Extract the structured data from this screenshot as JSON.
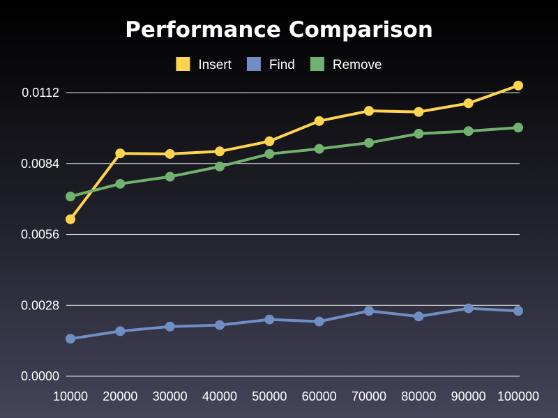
{
  "chart_data": {
    "type": "line",
    "title": "Performance Comparison",
    "xlabel": "",
    "ylabel": "",
    "x": [
      10000,
      20000,
      30000,
      40000,
      50000,
      60000,
      70000,
      80000,
      90000,
      100000
    ],
    "ylim": [
      0,
      0.0112
    ],
    "yticks": [
      "0.0000",
      "0.0028",
      "0.0056",
      "0.0084",
      "0.0112"
    ],
    "grid": true,
    "legend_position": "top",
    "series": [
      {
        "name": "Insert",
        "color": "#ffd54f",
        "values": [
          0.0062,
          0.0088,
          0.00878,
          0.00888,
          0.00928,
          0.01008,
          0.01048,
          0.01044,
          0.01078,
          0.01148
        ]
      },
      {
        "name": "Find",
        "color": "#6f8fc4",
        "values": [
          0.00148,
          0.00178,
          0.00196,
          0.00202,
          0.00224,
          0.00216,
          0.00258,
          0.00236,
          0.00268,
          0.00258
        ]
      },
      {
        "name": "Remove",
        "color": "#72b26f",
        "values": [
          0.0071,
          0.0076,
          0.00788,
          0.00828,
          0.00878,
          0.00898,
          0.00922,
          0.00958,
          0.00968,
          0.00982
        ]
      }
    ]
  }
}
